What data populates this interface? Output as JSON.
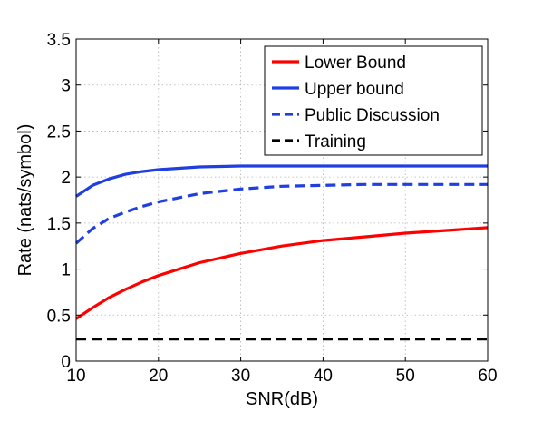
{
  "chart_data": {
    "type": "line",
    "xlabel": "SNR(dB)",
    "ylabel": "Rate (nats/symbol)",
    "xlim": [
      10,
      60
    ],
    "ylim": [
      0,
      3.5
    ],
    "xticks": [
      10,
      20,
      30,
      40,
      50,
      60
    ],
    "yticks": [
      0,
      0.5,
      1,
      1.5,
      2,
      2.5,
      3,
      3.5
    ],
    "grid": true,
    "legend_position": "top-right",
    "x": [
      10,
      12,
      14,
      16,
      18,
      20,
      25,
      30,
      35,
      40,
      45,
      50,
      55,
      60
    ],
    "series": [
      {
        "name": "Lower Bound",
        "color": "#ff0000",
        "dash": "solid",
        "values": [
          0.46,
          0.58,
          0.69,
          0.78,
          0.86,
          0.93,
          1.07,
          1.17,
          1.25,
          1.31,
          1.35,
          1.39,
          1.42,
          1.45
        ]
      },
      {
        "name": "Upper bound",
        "color": "#1f3fe0",
        "dash": "solid",
        "values": [
          1.79,
          1.91,
          1.98,
          2.03,
          2.06,
          2.08,
          2.11,
          2.12,
          2.12,
          2.12,
          2.12,
          2.12,
          2.12,
          2.12
        ]
      },
      {
        "name": "Public Discussion",
        "color": "#1f3fe0",
        "dash": "dashed",
        "values": [
          1.28,
          1.44,
          1.55,
          1.62,
          1.68,
          1.73,
          1.82,
          1.87,
          1.9,
          1.91,
          1.92,
          1.92,
          1.92,
          1.92
        ]
      },
      {
        "name": "Training",
        "color": "#000000",
        "dash": "dashed",
        "values": [
          0.24,
          0.24,
          0.24,
          0.24,
          0.24,
          0.24,
          0.24,
          0.24,
          0.24,
          0.24,
          0.24,
          0.24,
          0.24,
          0.24
        ]
      }
    ]
  }
}
